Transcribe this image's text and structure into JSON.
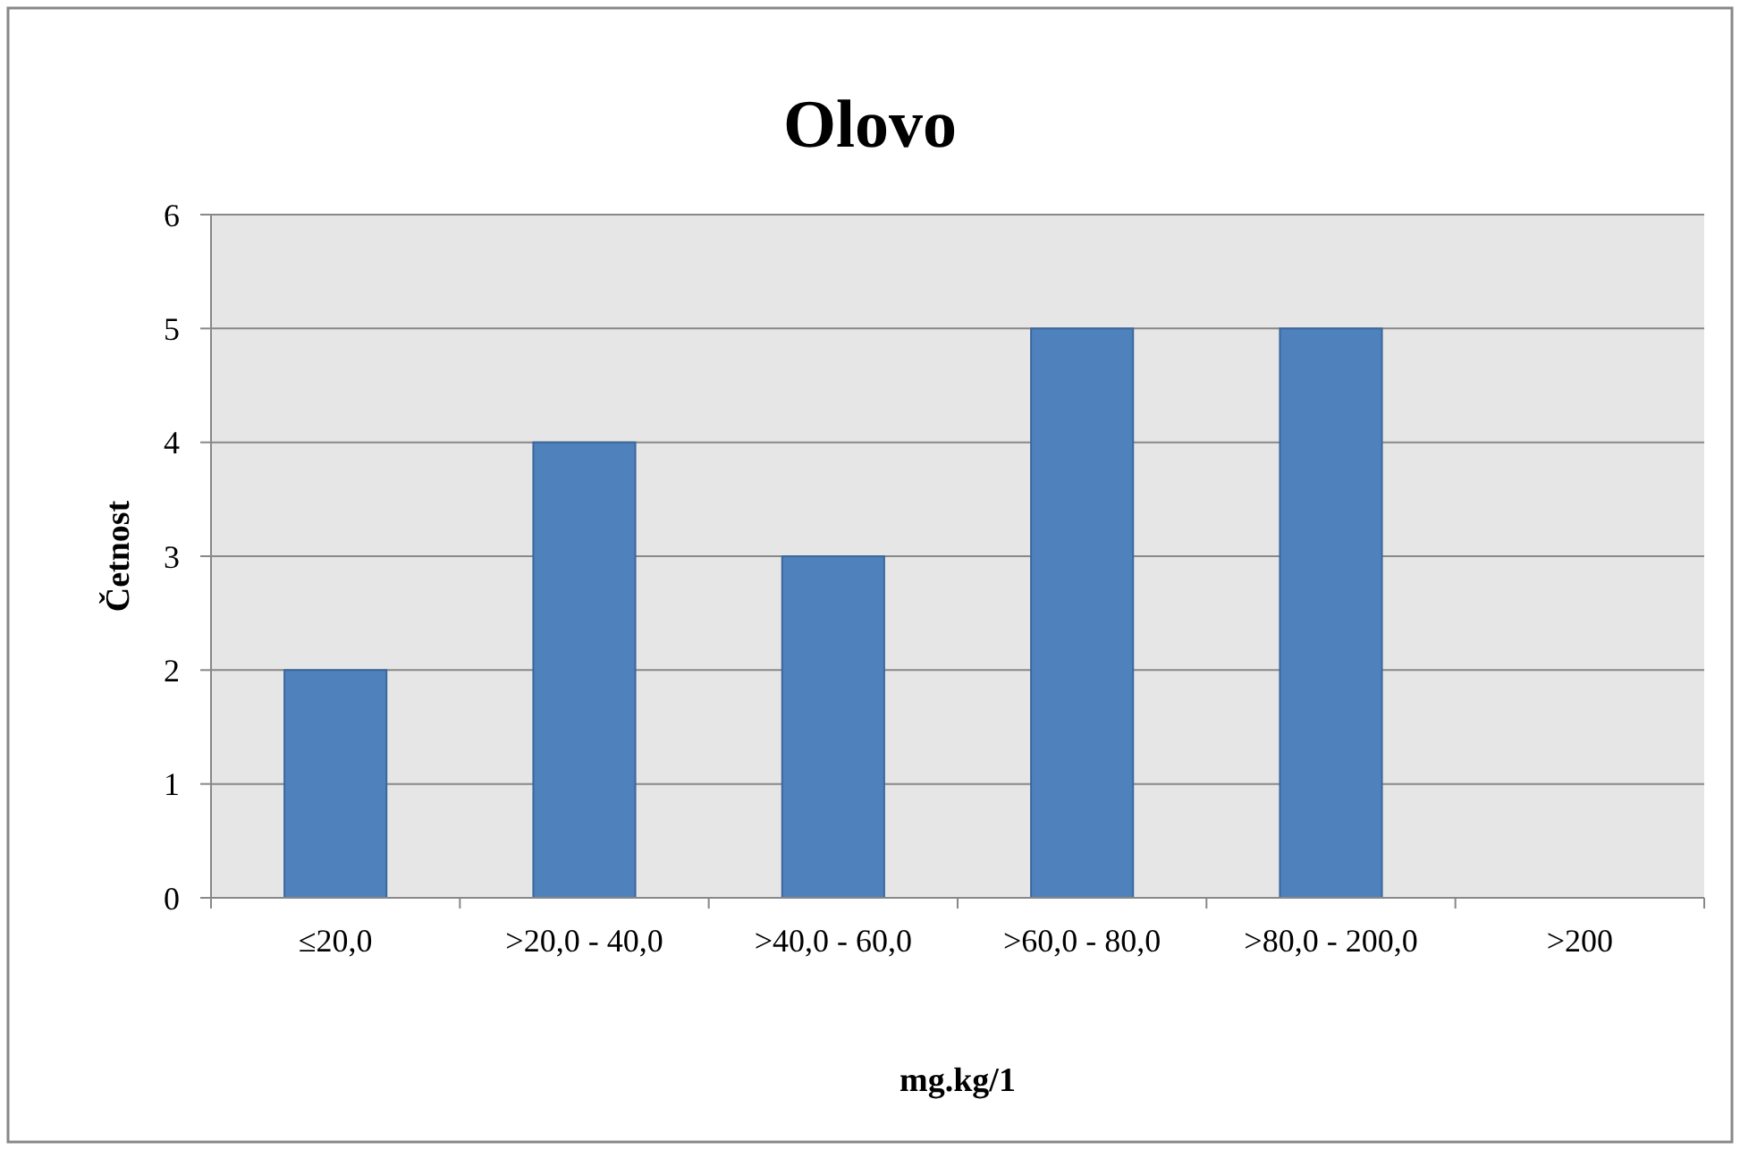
{
  "chart_data": {
    "type": "bar",
    "title": "Olovo",
    "xlabel": "mg.kg/1",
    "ylabel": "Četnost",
    "categories": [
      "≤20,0",
      ">20,0 - 40,0",
      ">40,0 - 60,0",
      ">60,0 - 80,0",
      ">80,0 - 200,0",
      ">200"
    ],
    "values": [
      2,
      4,
      3,
      5,
      5,
      0
    ],
    "color": "#4f81bd",
    "ylim": [
      0,
      6
    ],
    "yticks": [
      0,
      1,
      2,
      3,
      4,
      5,
      6
    ],
    "grid": "y"
  }
}
